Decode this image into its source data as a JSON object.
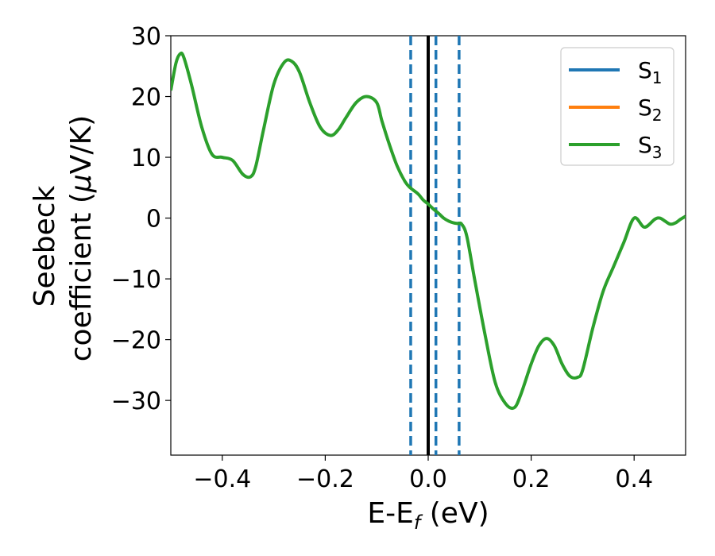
{
  "chart_data": {
    "type": "line",
    "xlabel": "E-E",
    "xlabel_sub": "f",
    "xlabel_unit": " (eV)",
    "ylabel_line1": "Seebeck",
    "ylabel_line2_prefix": "coefficient  (",
    "ylabel_mu": "μ",
    "ylabel_line2_suffix": "V/K)",
    "xlim": [
      -0.5,
      0.5
    ],
    "ylim": [
      -39,
      30
    ],
    "xticks": [
      -0.4,
      -0.2,
      0.0,
      0.2,
      0.4
    ],
    "xtick_labels": [
      "−0.4",
      "−0.2",
      "0.0",
      "0.2",
      "0.4"
    ],
    "yticks": [
      30,
      20,
      10,
      0,
      -10,
      -20,
      -30
    ],
    "ytick_labels": [
      "30",
      "20",
      "10",
      "0",
      "−10",
      "−20",
      "−30"
    ],
    "grid": false,
    "legend_position": "top-right",
    "vlines": [
      {
        "x": 0.0,
        "style": "solid",
        "color": "#000000"
      },
      {
        "x": -0.034,
        "style": "dashed",
        "color": "#1f77b4"
      },
      {
        "x": 0.015,
        "style": "dashed",
        "color": "#1f77b4"
      },
      {
        "x": 0.06,
        "style": "dashed",
        "color": "#1f77b4"
      }
    ],
    "series": [
      {
        "name": "S",
        "subscript": "1",
        "color": "#1f77b4"
      },
      {
        "name": "S",
        "subscript": "2",
        "color": "#ff7f0e"
      },
      {
        "name": "S",
        "subscript": "3",
        "color": "#2ca02c",
        "x": [
          -0.5,
          -0.49,
          -0.482,
          -0.475,
          -0.46,
          -0.44,
          -0.42,
          -0.4,
          -0.38,
          -0.36,
          -0.345,
          -0.335,
          -0.32,
          -0.3,
          -0.28,
          -0.265,
          -0.25,
          -0.23,
          -0.21,
          -0.19,
          -0.175,
          -0.16,
          -0.14,
          -0.12,
          -0.1,
          -0.09,
          -0.075,
          -0.06,
          -0.045,
          -0.035,
          -0.02,
          -0.01,
          0.0,
          0.01,
          0.02,
          0.03,
          0.04,
          0.05,
          0.058,
          0.065,
          0.075,
          0.09,
          0.11,
          0.13,
          0.15,
          0.167,
          0.18,
          0.2,
          0.215,
          0.23,
          0.245,
          0.26,
          0.275,
          0.29,
          0.3,
          0.32,
          0.34,
          0.36,
          0.38,
          0.4,
          0.42,
          0.44,
          0.45,
          0.46,
          0.47,
          0.48,
          0.49,
          0.5
        ],
        "y": [
          21,
          25.5,
          27,
          26.5,
          22,
          15,
          10.5,
          10,
          9.5,
          7.2,
          6.8,
          8.5,
          14.5,
          22,
          25.6,
          25.8,
          24,
          19,
          15,
          13.6,
          14.5,
          16.5,
          19,
          20,
          19,
          16,
          12,
          8.5,
          6,
          5,
          4,
          3,
          2.3,
          1.5,
          0.8,
          0,
          -0.5,
          -0.8,
          -0.9,
          -1,
          -3,
          -10,
          -19,
          -27,
          -30.5,
          -31.2,
          -29,
          -24,
          -21,
          -19.8,
          -21,
          -24,
          -26,
          -26.2,
          -25,
          -18,
          -12,
          -8,
          -4,
          0,
          -1.5,
          -0.2,
          0,
          -0.5,
          -1,
          -0.8,
          -0.2,
          0.3
        ]
      }
    ]
  }
}
